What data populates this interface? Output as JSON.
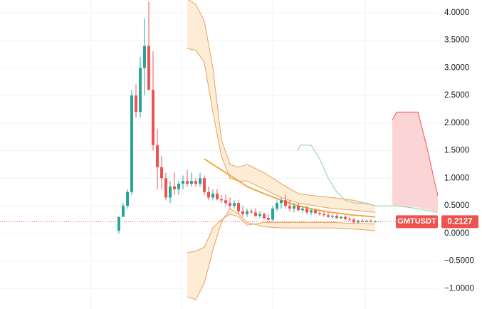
{
  "chart_data": {
    "type": "candlestick",
    "symbol": "GMTUSDT",
    "last_price": 0.2127,
    "up_color": "#26a69a",
    "down_color": "#ef5350",
    "open": [
      0.05,
      0.3,
      0.5,
      0.75,
      2.5,
      2.2,
      3.0,
      3.4,
      2.6,
      1.6,
      1.2,
      1.0,
      0.65,
      0.85,
      0.8,
      0.9,
      0.95,
      0.9,
      0.95,
      0.9,
      1.0,
      0.75,
      0.65,
      0.72,
      0.62,
      0.6,
      0.55,
      0.5,
      0.55,
      0.4,
      0.35,
      0.4,
      0.38,
      0.32,
      0.35,
      0.28,
      0.25,
      0.45,
      0.55,
      0.6,
      0.5,
      0.45,
      0.5,
      0.42,
      0.45,
      0.38,
      0.42,
      0.37,
      0.35,
      0.33,
      0.3,
      0.32,
      0.28,
      0.3,
      0.26,
      0.25,
      0.2,
      0.23,
      0.22,
      0.23,
      0.21
    ],
    "high": [
      0.3,
      0.55,
      0.8,
      2.6,
      2.7,
      3.2,
      3.9,
      4.2,
      3.3,
      1.9,
      1.4,
      1.1,
      0.95,
      1.1,
      0.95,
      1.05,
      1.15,
      1.1,
      1.0,
      1.1,
      1.05,
      0.85,
      0.8,
      0.8,
      0.7,
      0.7,
      0.65,
      0.6,
      0.6,
      0.5,
      0.45,
      0.45,
      0.45,
      0.4,
      0.38,
      0.35,
      0.5,
      0.6,
      0.65,
      0.7,
      0.6,
      0.55,
      0.55,
      0.5,
      0.5,
      0.45,
      0.45,
      0.42,
      0.4,
      0.38,
      0.35,
      0.35,
      0.32,
      0.33,
      0.3,
      0.28,
      0.25,
      0.26,
      0.25,
      0.26,
      0.24
    ],
    "low": [
      0.0,
      0.3,
      0.45,
      0.7,
      2.1,
      2.1,
      2.5,
      2.6,
      1.5,
      0.8,
      0.8,
      0.6,
      0.55,
      0.7,
      0.7,
      0.8,
      0.85,
      0.85,
      0.85,
      0.85,
      0.7,
      0.6,
      0.6,
      0.6,
      0.55,
      0.5,
      0.45,
      0.45,
      0.35,
      0.3,
      0.3,
      0.35,
      0.3,
      0.28,
      0.25,
      0.22,
      0.22,
      0.4,
      0.45,
      0.45,
      0.4,
      0.38,
      0.4,
      0.38,
      0.35,
      0.33,
      0.35,
      0.32,
      0.3,
      0.28,
      0.27,
      0.26,
      0.25,
      0.24,
      0.22,
      0.18,
      0.18,
      0.2,
      0.2,
      0.2,
      0.2
    ],
    "close": [
      0.3,
      0.5,
      0.75,
      2.5,
      2.2,
      3.0,
      3.4,
      2.6,
      1.6,
      1.2,
      1.0,
      0.65,
      0.85,
      0.8,
      0.9,
      0.95,
      0.9,
      0.95,
      0.9,
      1.0,
      0.75,
      0.65,
      0.72,
      0.62,
      0.6,
      0.55,
      0.5,
      0.55,
      0.4,
      0.35,
      0.4,
      0.38,
      0.32,
      0.35,
      0.28,
      0.25,
      0.45,
      0.55,
      0.6,
      0.5,
      0.45,
      0.5,
      0.42,
      0.45,
      0.38,
      0.42,
      0.37,
      0.35,
      0.33,
      0.3,
      0.32,
      0.28,
      0.3,
      0.26,
      0.25,
      0.2,
      0.23,
      0.22,
      0.23,
      0.21,
      0.2127
    ],
    "envelope": {
      "color": "#e9a15d",
      "middle_color": "#f3a83b",
      "fill": "#fdecd6",
      "x": [
        16,
        18,
        20,
        22,
        24,
        26,
        28,
        30,
        34,
        38,
        42,
        46,
        50,
        55,
        60
      ],
      "upper_outer": [
        4.25,
        4.15,
        3.85,
        3.0,
        1.7,
        1.25,
        1.2,
        1.25,
        1.1,
        0.9,
        0.72,
        0.68,
        0.65,
        0.6,
        0.5
      ],
      "upper_inner": [
        3.35,
        3.32,
        3.1,
        2.2,
        1.4,
        1.0,
        0.95,
        0.95,
        0.8,
        0.65,
        0.55,
        0.5,
        0.45,
        0.42,
        0.38
      ],
      "middle": [
        null,
        null,
        1.35,
        1.25,
        1.15,
        1.05,
        0.95,
        0.85,
        0.72,
        0.6,
        0.5,
        0.43,
        0.38,
        0.33,
        0.3
      ],
      "lower_inner": [
        -0.35,
        -0.32,
        -0.25,
        0.1,
        0.25,
        0.35,
        0.3,
        0.15,
        0.2,
        0.2,
        0.2,
        0.2,
        0.2,
        0.18,
        0.17
      ],
      "lower_outer": [
        -1.15,
        -1.2,
        -0.9,
        -0.3,
        0.2,
        0.45,
        0.35,
        0.2,
        0.12,
        0.1,
        0.1,
        0.1,
        0.1,
        0.08,
        0.05
      ]
    },
    "signal": {
      "color": "#8fcf9f",
      "x": [
        41.8,
        42.5,
        45,
        47,
        49,
        51,
        53,
        55,
        58,
        60,
        65,
        70,
        74.5
      ],
      "values": [
        1.5,
        1.6,
        1.6,
        1.35,
        1.0,
        0.75,
        0.6,
        0.55,
        0.55,
        0.5,
        0.5,
        0.45,
        0.38
      ]
    },
    "zone": {
      "color": "#ef5350",
      "fill": "#fbd5d5",
      "x": [
        64,
        65,
        70,
        72,
        74,
        74.7
      ],
      "upper": [
        2.05,
        2.2,
        2.2,
        1.6,
        0.9,
        0.68
      ],
      "lower": [
        0.52,
        0.5,
        0.47,
        0.44,
        0.4,
        0.38
      ]
    },
    "ylim": [
      -1.37,
      4.23
    ],
    "yticks": [
      {
        "value": 4,
        "label": "4.0000"
      },
      {
        "value": 3.5,
        "label": "3.5000"
      },
      {
        "value": 3,
        "label": "3.0000"
      },
      {
        "value": 2.5,
        "label": "2.5000"
      },
      {
        "value": 2,
        "label": "2.0000"
      },
      {
        "value": 1.5,
        "label": "1.5000"
      },
      {
        "value": 1,
        "label": "1.0000"
      },
      {
        "value": 0.5,
        "label": "0.5000"
      },
      {
        "value": 0,
        "label": "0.0000"
      },
      {
        "value": -0.5,
        "label": "−0.5000"
      },
      {
        "value": -1,
        "label": "−1.0000"
      }
    ],
    "grid": true
  }
}
